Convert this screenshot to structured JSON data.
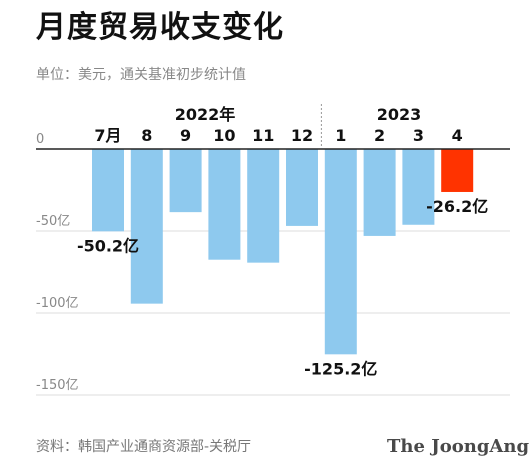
{
  "title": "月度贸易收支变化",
  "subtitle": "单位：美元，通关基准初步统计值",
  "source": "资料：韩国产业通商资源部-关税厅",
  "watermark": "The JoongAng",
  "colors": {
    "negative_bar": "#8ec9ee",
    "highlight_bar": "#ff3300",
    "axis": "#222222",
    "grid": "#dddddd",
    "tick_text": "#888888"
  },
  "chart_data": {
    "type": "bar",
    "title": "月度贸易收支变化",
    "subtitle": "单位：美元，通关基准初步统计值",
    "xlabel": "",
    "ylabel": "",
    "ylim": [
      -150,
      0
    ],
    "yticks": [
      {
        "value": 0,
        "label": "0"
      },
      {
        "value": -50,
        "label": "-50亿"
      },
      {
        "value": -100,
        "label": "-100亿"
      },
      {
        "value": -150,
        "label": "-150亿"
      }
    ],
    "grid": true,
    "year_groups": [
      {
        "label": "2022年",
        "start": 0,
        "end": 5
      },
      {
        "label": "2023",
        "start": 6,
        "end": 9
      }
    ],
    "categories": [
      "7月",
      "8",
      "9",
      "10",
      "11",
      "12",
      "1",
      "2",
      "3",
      "4"
    ],
    "values": [
      -50.2,
      -94.3,
      -38.5,
      -67.5,
      -69.3,
      -46.9,
      -125.2,
      -53,
      -46.2,
      -26.2
    ],
    "highlight_index": 9,
    "data_labels": [
      {
        "index": 0,
        "text": "-50.2亿"
      },
      {
        "index": 6,
        "text": "-125.2亿"
      },
      {
        "index": 9,
        "text": "-26.2亿"
      }
    ]
  }
}
